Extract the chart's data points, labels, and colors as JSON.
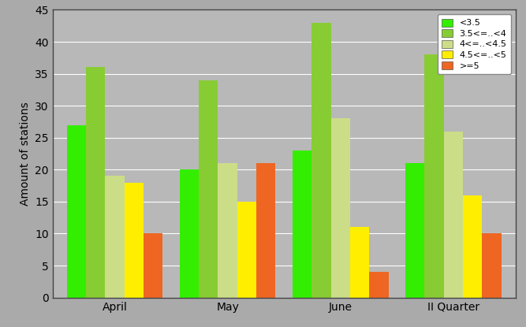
{
  "categories": [
    "April",
    "May",
    "June",
    "II Quarter"
  ],
  "series": [
    {
      "label": "<3.5",
      "values": [
        27,
        20,
        23,
        21
      ],
      "color": "#33ee00"
    },
    {
      "label": "3.5<=..<4",
      "values": [
        36,
        34,
        43,
        38
      ],
      "color": "#88cc33"
    },
    {
      "label": "4<=..<4.5",
      "values": [
        19,
        21,
        28,
        26
      ],
      "color": "#ccdd88"
    },
    {
      "label": "4.5<=..<5",
      "values": [
        18,
        15,
        11,
        16
      ],
      "color": "#ffee00"
    },
    {
      "label": ">=5",
      "values": [
        10,
        21,
        4,
        10
      ],
      "color": "#ee6622"
    }
  ],
  "ylabel": "Amount of stations",
  "ylim": [
    0,
    45
  ],
  "yticks": [
    0,
    5,
    10,
    15,
    20,
    25,
    30,
    35,
    40,
    45
  ],
  "background_color": "#aaaaaa",
  "plot_bg_color": "#b8b8b8",
  "bar_width": 0.17,
  "title": ""
}
